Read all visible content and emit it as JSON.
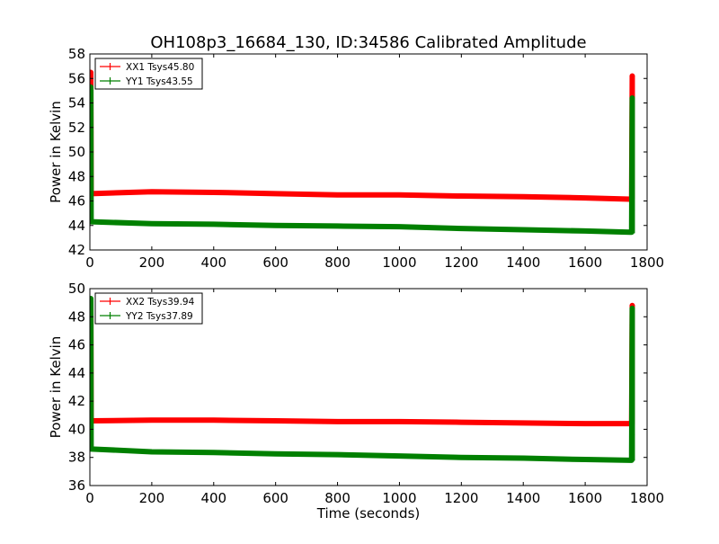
{
  "title": "OH108p3_16684_130, ID:34586 Calibrated Amplitude",
  "colors": {
    "red": "#ff0000",
    "green": "#008000",
    "axes": "#000000",
    "background": "#ffffff"
  },
  "chart_data": [
    {
      "type": "line",
      "ylabel": "Power in Kelvin",
      "xlabel": "",
      "xlim": [
        0,
        1800
      ],
      "ylim": [
        42,
        58
      ],
      "xticks": [
        0,
        200,
        400,
        600,
        800,
        1000,
        1200,
        1400,
        1600,
        1800
      ],
      "xtick_labels": [
        "0",
        "200",
        "400",
        "600",
        "800",
        "1000",
        "1200",
        "1400",
        "1600",
        "1800"
      ],
      "yticks": [
        42,
        44,
        46,
        48,
        50,
        52,
        54,
        56,
        58
      ],
      "ytick_labels": [
        "42",
        "44",
        "46",
        "48",
        "50",
        "52",
        "54",
        "56",
        "58"
      ],
      "legend_position": "top-left",
      "series": [
        {
          "name": "XX1 Tsys45.80",
          "color": "#ff0000",
          "x": [
            0,
            3,
            3,
            4,
            200,
            400,
            600,
            800,
            1000,
            1200,
            1400,
            1600,
            1745,
            1750,
            1752,
            1752
          ],
          "y": [
            46.6,
            46.6,
            56.5,
            46.6,
            46.75,
            46.7,
            46.6,
            46.5,
            46.5,
            46.4,
            46.35,
            46.25,
            46.15,
            46.15,
            56.2,
            46.2
          ],
          "spike_values": [
            56.5,
            56.2
          ]
        },
        {
          "name": "YY1 Tsys43.55",
          "color": "#008000",
          "x": [
            0,
            3,
            3,
            4,
            200,
            400,
            600,
            800,
            1000,
            1200,
            1400,
            1600,
            1745,
            1750,
            1752,
            1752
          ],
          "y": [
            44.3,
            44.3,
            55.3,
            44.3,
            44.15,
            44.1,
            44.0,
            43.95,
            43.9,
            43.75,
            43.65,
            43.55,
            43.45,
            43.45,
            54.4,
            43.4
          ],
          "spike_values": [
            55.3,
            54.4
          ]
        }
      ]
    },
    {
      "type": "line",
      "ylabel": "Power in Kelvin",
      "xlabel": "Time (seconds)",
      "xlim": [
        0,
        1800
      ],
      "ylim": [
        36,
        50
      ],
      "xticks": [
        0,
        200,
        400,
        600,
        800,
        1000,
        1200,
        1400,
        1600,
        1800
      ],
      "xtick_labels": [
        "0",
        "200",
        "400",
        "600",
        "800",
        "1000",
        "1200",
        "1400",
        "1600",
        "1800"
      ],
      "yticks": [
        36,
        38,
        40,
        42,
        44,
        46,
        48,
        50
      ],
      "ytick_labels": [
        "36",
        "38",
        "40",
        "42",
        "44",
        "46",
        "48",
        "50"
      ],
      "legend_position": "top-left",
      "series": [
        {
          "name": "XX2 Tsys39.94",
          "color": "#ff0000",
          "x": [
            0,
            3,
            3,
            4,
            200,
            400,
            600,
            800,
            1000,
            1200,
            1400,
            1600,
            1745,
            1750,
            1752,
            1752
          ],
          "y": [
            40.6,
            40.6,
            49.1,
            40.6,
            40.65,
            40.65,
            40.6,
            40.55,
            40.55,
            40.5,
            40.45,
            40.4,
            40.4,
            40.4,
            48.8,
            40.4
          ],
          "spike_values": [
            49.1,
            48.8
          ]
        },
        {
          "name": "YY2 Tsys37.89",
          "color": "#008000",
          "x": [
            0,
            3,
            3,
            4,
            200,
            400,
            600,
            800,
            1000,
            1200,
            1400,
            1600,
            1745,
            1750,
            1752,
            1752
          ],
          "y": [
            38.6,
            38.6,
            49.3,
            38.6,
            38.4,
            38.35,
            38.25,
            38.2,
            38.1,
            38.0,
            37.95,
            37.85,
            37.8,
            37.8,
            48.6,
            37.8
          ],
          "spike_values": [
            49.3,
            48.6
          ]
        }
      ]
    }
  ]
}
